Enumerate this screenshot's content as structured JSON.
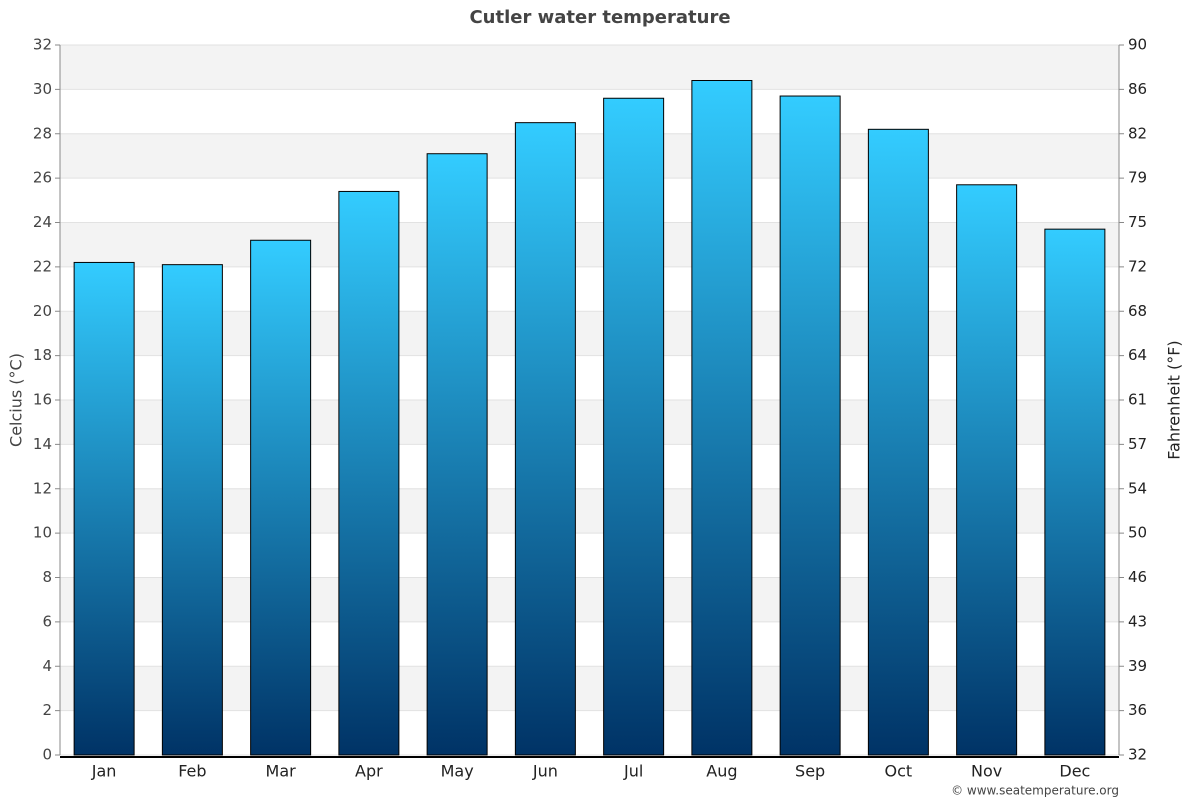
{
  "chart_data": {
    "type": "bar",
    "title": "Cutler water temperature",
    "categories": [
      "Jan",
      "Feb",
      "Mar",
      "Apr",
      "May",
      "Jun",
      "Jul",
      "Aug",
      "Sep",
      "Oct",
      "Nov",
      "Dec"
    ],
    "values": [
      22.2,
      22.1,
      23.2,
      25.4,
      27.1,
      28.5,
      29.6,
      30.4,
      29.7,
      28.2,
      25.7,
      23.7
    ],
    "gradient": [
      "#33ccff",
      "#003366"
    ],
    "ylabel": "Celcius (°C)",
    "ylim": [
      0,
      32
    ],
    "yticks": [
      0,
      2,
      4,
      6,
      8,
      10,
      12,
      14,
      16,
      18,
      20,
      22,
      24,
      26,
      28,
      30,
      32
    ],
    "y2label": "Fahrenheit (°F)",
    "y2lim": [
      32,
      89.6
    ],
    "y2ticks": [
      32,
      {
        "value": 35.6,
        "label": "36"
      },
      {
        "value": 39.2,
        "label": "39"
      },
      {
        "value": 42.8,
        "label": "43"
      },
      {
        "value": 46.4,
        "label": "46"
      },
      50,
      {
        "value": 53.6,
        "label": "54"
      },
      {
        "value": 57.2,
        "label": "57"
      },
      {
        "value": 60.8,
        "label": "61"
      },
      {
        "value": 64.4,
        "label": "64"
      },
      68,
      {
        "value": 71.6,
        "label": "72"
      },
      {
        "value": 75.2,
        "label": "75"
      },
      {
        "value": 78.8,
        "label": "79"
      },
      {
        "value": 82.4,
        "label": "82"
      },
      86,
      {
        "value": 89.6,
        "label": "90"
      }
    ],
    "grid": true,
    "credit": "© www.seatemperature.org"
  }
}
